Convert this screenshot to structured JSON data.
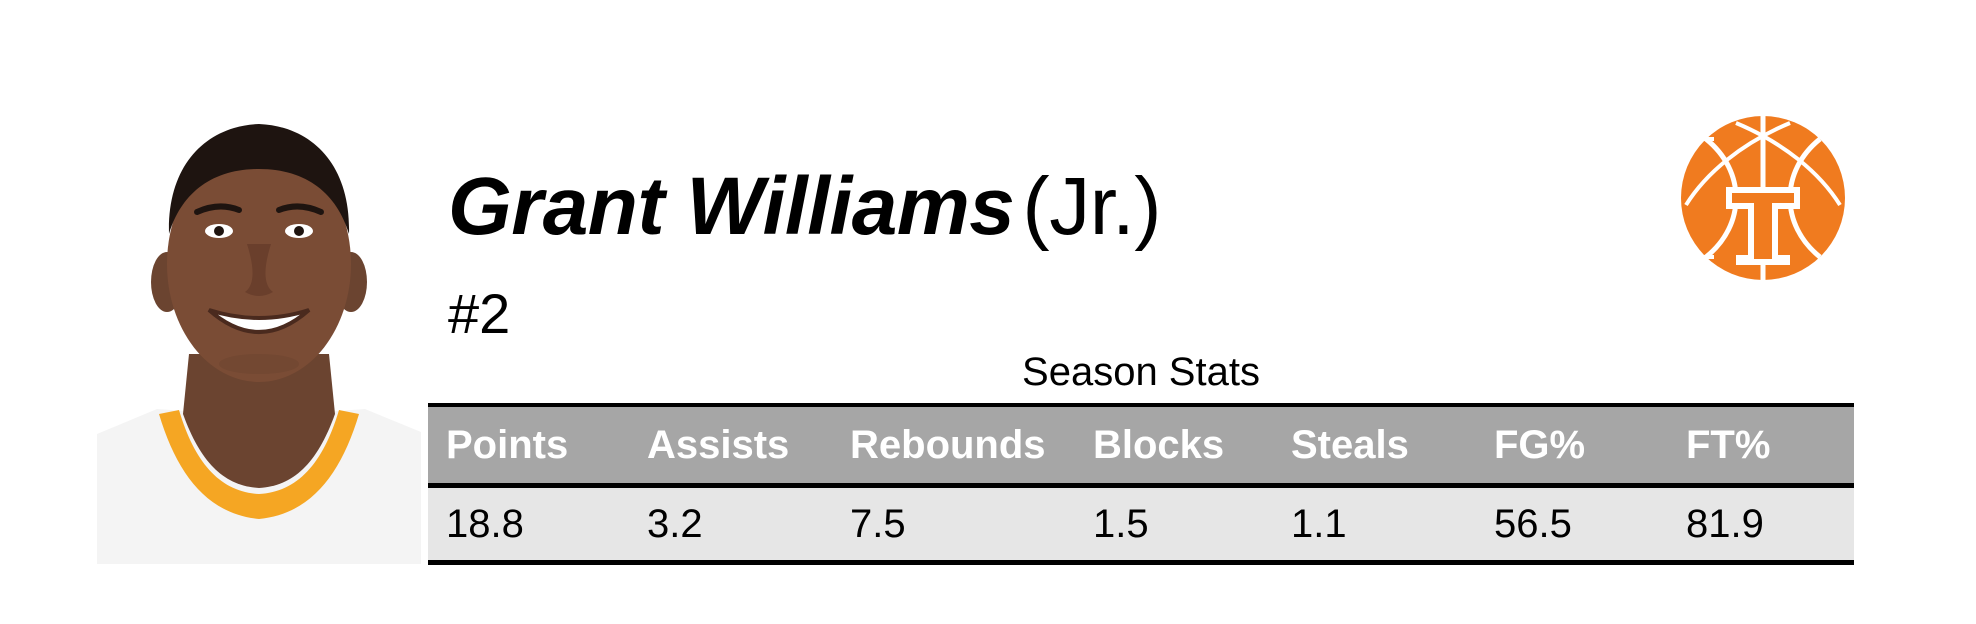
{
  "player": {
    "name": "Grant Williams",
    "class": "(Jr.)",
    "number": "#2"
  },
  "photo": {
    "icon": "player-headshot",
    "jersey_trim_color": "#f5a623"
  },
  "logo": {
    "icon": "basketball-power-t-logo",
    "color": "#f07b1f"
  },
  "stats": {
    "caption": "Season Stats",
    "headers": [
      "Points",
      "Assists",
      "Rebounds",
      "Blocks",
      "Steals",
      "FG%",
      "FT%"
    ],
    "values": [
      "18.8",
      "3.2",
      "7.5",
      "1.5",
      "1.1",
      "56.5",
      "81.9"
    ]
  },
  "colors": {
    "header_bg": "#a6a6a6",
    "row_bg": "#e6e6e6",
    "border": "#000000"
  }
}
